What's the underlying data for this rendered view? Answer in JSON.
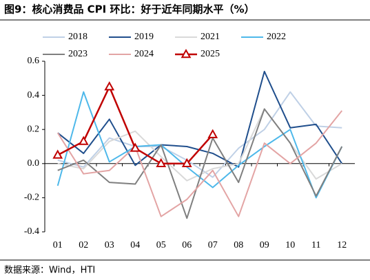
{
  "chart_data": {
    "type": "line",
    "title": "图9：核心消费品 CPI 环比：好于近年同期水平（%）",
    "source": "数据来源：Wind，HTI",
    "categories": [
      "01",
      "02",
      "03",
      "04",
      "05",
      "06",
      "07",
      "08",
      "09",
      "10",
      "11",
      "12"
    ],
    "series": [
      {
        "name": "2018",
        "color": "#bfd0e6",
        "values": [
          0.02,
          -0.02,
          0.15,
          0.1,
          0.1,
          0.02,
          -0.08,
          0.09,
          0.2,
          0.42,
          0.22,
          0.21
        ]
      },
      {
        "name": "2019",
        "color": "#1f4e8c",
        "values": [
          0.18,
          0.06,
          0.26,
          -0.01,
          0.11,
          0.1,
          0.06,
          -0.02,
          0.54,
          0.21,
          0.23,
          0.0
        ]
      },
      {
        "name": "2021",
        "color": "#d9d9d9",
        "values": [
          0.0,
          -0.03,
          0.13,
          0.19,
          0.04,
          -0.1,
          -0.03,
          0.0,
          0.32,
          0.12,
          -0.09,
          0.0
        ]
      },
      {
        "name": "2022",
        "color": "#4db8ea",
        "values": [
          -0.13,
          0.42,
          0.01,
          0.1,
          0.11,
          -0.02,
          -0.14,
          -0.01,
          0.1,
          0.2,
          -0.2,
          0.1
        ]
      },
      {
        "name": "2023",
        "color": "#7f7f7f",
        "values": [
          -0.04,
          0.02,
          -0.11,
          -0.12,
          0.11,
          -0.32,
          0.15,
          -0.11,
          0.32,
          0.12,
          -0.19,
          0.1
        ]
      },
      {
        "name": "2024",
        "color": "#e3a4a4",
        "values": [
          0.18,
          -0.06,
          -0.04,
          0.1,
          -0.31,
          -0.21,
          -0.04,
          -0.31,
          0.12,
          0.0,
          0.12,
          0.31
        ]
      },
      {
        "name": "2025",
        "color": "#c00000",
        "marker": "triangle",
        "values": [
          0.05,
          0.13,
          0.45,
          0.09,
          0.0,
          0.0,
          0.17,
          null,
          null,
          null,
          null,
          null
        ]
      }
    ],
    "ylim": [
      -0.4,
      0.6
    ],
    "yticks": [
      -0.4,
      -0.2,
      {
        "value": 0,
        "label": "0.0"
      },
      0.2,
      0.4,
      0.6
    ]
  }
}
